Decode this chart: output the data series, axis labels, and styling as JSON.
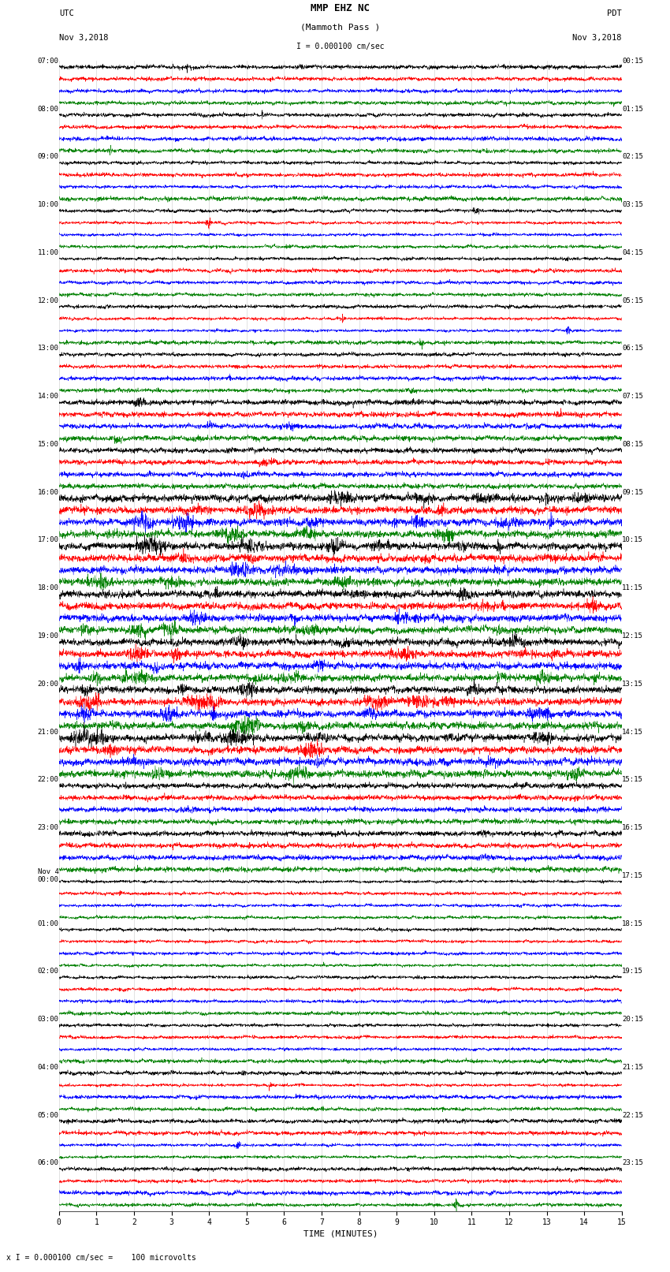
{
  "title_line1": "MMP EHZ NC",
  "title_line2": "(Mammoth Pass )",
  "scale_label": "I = 0.000100 cm/sec",
  "bottom_label": "x I = 0.000100 cm/sec =    100 microvolts",
  "xlabel": "TIME (MINUTES)",
  "left_times_utc": [
    "07:00",
    "08:00",
    "09:00",
    "10:00",
    "11:00",
    "12:00",
    "13:00",
    "14:00",
    "15:00",
    "16:00",
    "17:00",
    "18:00",
    "19:00",
    "20:00",
    "21:00",
    "22:00",
    "23:00",
    "Nov 4\n00:00",
    "01:00",
    "02:00",
    "03:00",
    "04:00",
    "05:00",
    "06:00"
  ],
  "right_times_pdt": [
    "00:15",
    "01:15",
    "02:15",
    "03:15",
    "04:15",
    "05:15",
    "06:15",
    "07:15",
    "08:15",
    "09:15",
    "10:15",
    "11:15",
    "12:15",
    "13:15",
    "14:15",
    "15:15",
    "16:15",
    "17:15",
    "18:15",
    "19:15",
    "20:15",
    "21:15",
    "22:15",
    "23:15"
  ],
  "trace_colors_cycle": [
    "black",
    "red",
    "blue",
    "green"
  ],
  "background_color": "white",
  "n_hours": 24,
  "n_traces_per_hour": 4,
  "n_minutes": 15,
  "samples_per_minute": 200,
  "noise_base": 0.12,
  "xlim": [
    0,
    15
  ],
  "xticks": [
    0,
    1,
    2,
    3,
    4,
    5,
    6,
    7,
    8,
    9,
    10,
    11,
    12,
    13,
    14,
    15
  ],
  "event_hours": [
    9,
    10,
    11,
    12,
    13,
    14
  ],
  "moderate_hours": [
    7,
    8,
    15,
    16
  ],
  "event_amplitude": 0.8,
  "moderate_amplitude": 0.35
}
